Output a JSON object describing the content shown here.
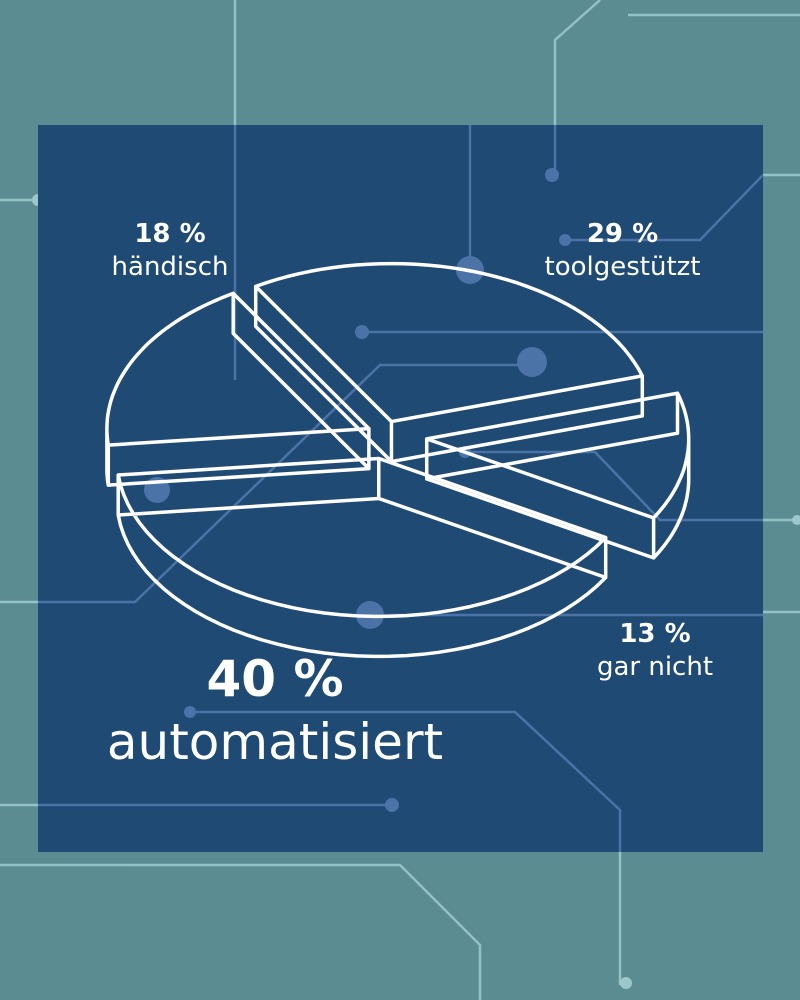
{
  "colors": {
    "background": "#5a8c92",
    "panel": "#1f4a73",
    "circuit": "#9cc7cb",
    "circuit_on_panel": "#4b73a8",
    "outline": "#ffffff",
    "text": "#ffffff"
  },
  "chart_data": {
    "type": "pie",
    "style": "3d-exploded",
    "title": "",
    "slices": [
      {
        "label": "händisch",
        "value": 18,
        "value_label": "18 %"
      },
      {
        "label": "toolgestützt",
        "value": 29,
        "value_label": "29 %"
      },
      {
        "label": "gar nicht",
        "value": 13,
        "value_label": "13 %"
      },
      {
        "label": "automatisiert",
        "value": 40,
        "value_label": "40 %"
      }
    ]
  }
}
